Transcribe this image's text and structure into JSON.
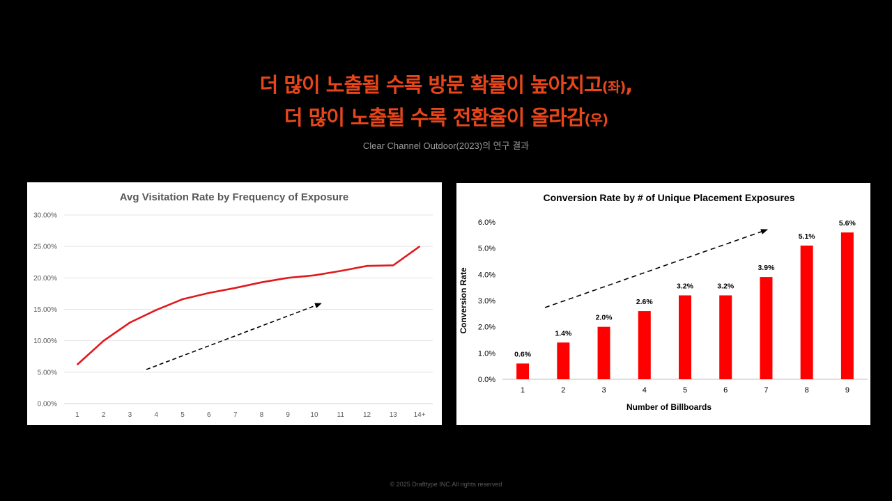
{
  "header": {
    "line1": "더 많이 노출될 수록 방문 확률이 높아지고",
    "line1_suffix": "(좌)",
    "line1_comma": ",",
    "line2": "더 많이 노출될 수록 전환율이 올라감",
    "line2_suffix": "(우)",
    "subtitle": "Clear Channel Outdoor(2023)의 연구 결과"
  },
  "footer": {
    "text": "© 2025 Drafttype INC.All rights reserved"
  },
  "colors": {
    "accent": "#e8461a",
    "line": "#e0191c",
    "bar": "#ff0000"
  },
  "chart_data": [
    {
      "type": "line",
      "title": "Avg Visitation Rate  by Frequency of Exposure",
      "categories": [
        "1",
        "2",
        "3",
        "4",
        "5",
        "6",
        "7",
        "8",
        "9",
        "10",
        "11",
        "12",
        "13",
        "14+"
      ],
      "values": [
        6.2,
        10.0,
        12.9,
        14.9,
        16.6,
        17.6,
        18.4,
        19.3,
        20.0,
        20.4,
        21.1,
        21.9,
        22.0,
        25.0
      ],
      "ylim": [
        0,
        30
      ],
      "yticks": [
        "0.00%",
        "5.00%",
        "10.00%",
        "15.00%",
        "20.00%",
        "25.00%",
        "30.00%"
      ],
      "grid": true,
      "trend_arrow": true
    },
    {
      "type": "bar",
      "title": "Conversion Rate by # of Unique Placement Exposures",
      "xlabel": "Number of Billboards",
      "ylabel": "Conversion Rate",
      "categories": [
        "1",
        "2",
        "3",
        "4",
        "5",
        "6",
        "7",
        "8",
        "9"
      ],
      "values": [
        0.6,
        1.4,
        2.0,
        2.6,
        3.2,
        3.2,
        3.9,
        5.1,
        5.6
      ],
      "data_labels": [
        "0.6%",
        "1.4%",
        "2.0%",
        "2.6%",
        "3.2%",
        "3.2%",
        "3.9%",
        "5.1%",
        "5.6%"
      ],
      "ylim": [
        0,
        6
      ],
      "yticks": [
        "0.0%",
        "1.0%",
        "2.0%",
        "3.0%",
        "4.0%",
        "5.0%",
        "6.0%"
      ],
      "grid": false,
      "trend_arrow": true
    }
  ]
}
